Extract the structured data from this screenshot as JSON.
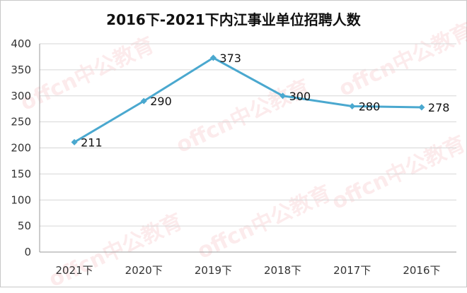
{
  "chart_data": {
    "type": "line",
    "title": "2016下-2021下内江事业单位招聘人数",
    "categories": [
      "2021下",
      "2020下",
      "2019下",
      "2018下",
      "2017下",
      "2016下"
    ],
    "series": [
      {
        "values": [
          211,
          290,
          373,
          300,
          280,
          278
        ]
      }
    ],
    "ylim": [
      0,
      400
    ],
    "yticks": [
      0,
      50,
      100,
      150,
      200,
      250,
      300,
      350,
      400
    ],
    "grid": true,
    "legend": "none",
    "line_color": "#4aa8cf",
    "data_labels": true
  },
  "watermark": {
    "text": "offcn中公教育",
    "color": "#e23c46"
  }
}
